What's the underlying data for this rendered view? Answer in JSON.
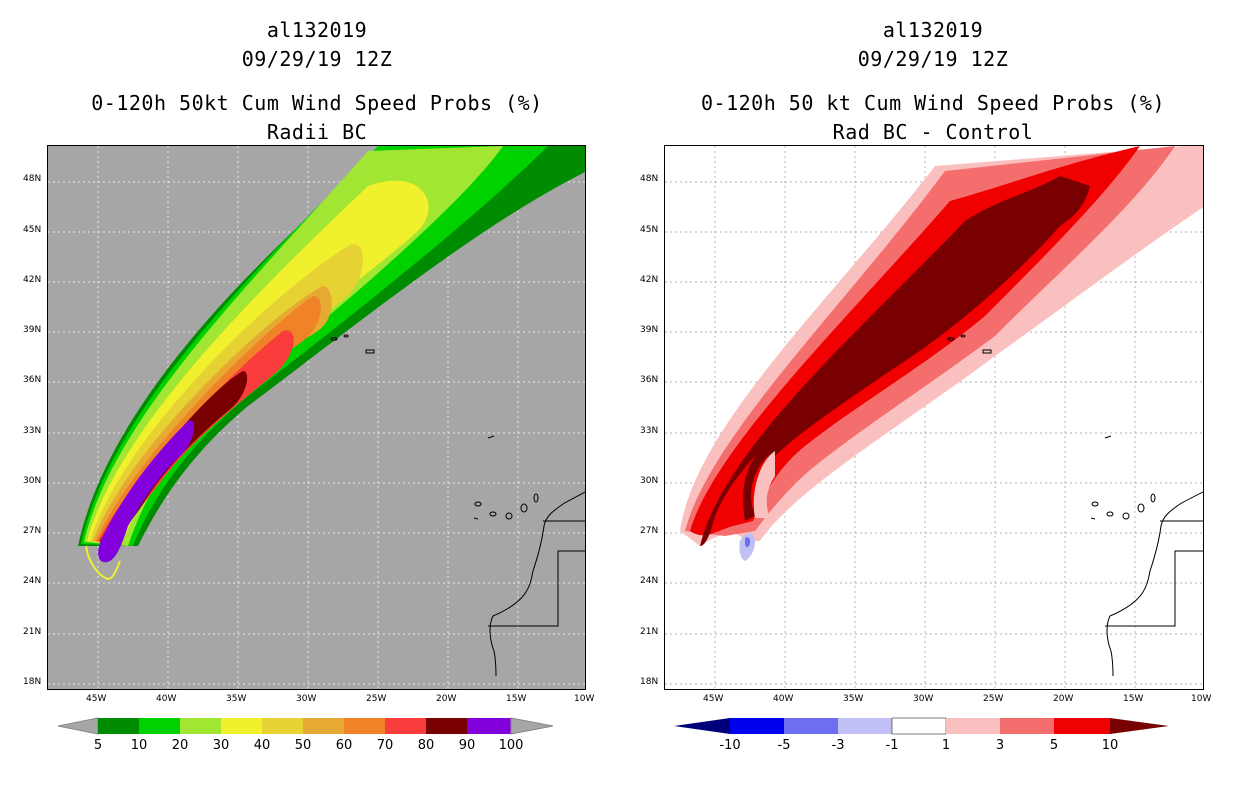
{
  "left_panel": {
    "title_line1": "al132019",
    "title_line2": "09/29/19 12Z",
    "title_line3": "0-120h 50kt Cum Wind Speed Probs (%)",
    "title_line4": "Radii BC",
    "colorbar_labels": [
      "5",
      "10",
      "20",
      "30",
      "40",
      "50",
      "60",
      "70",
      "80",
      "90",
      "100"
    ],
    "colorbar_colors": [
      "#008c00",
      "#00d200",
      "#a0e632",
      "#f0f02c",
      "#e6d232",
      "#e6aa32",
      "#f08228",
      "#fa3c3c",
      "#780000",
      "#8200dc"
    ],
    "background_color": "#a6a6a6"
  },
  "right_panel": {
    "title_line1": "al132019",
    "title_line2": "09/29/19 12Z",
    "title_line3": "0-120h 50 kt Cum Wind Speed Probs (%)",
    "title_line4": "Rad BC - Control",
    "colorbar_labels": [
      "-10",
      "-5",
      "-3",
      "-1",
      "1",
      "3",
      "5",
      "10"
    ],
    "colorbar_colors": [
      "#00007a",
      "#0000f0",
      "#6e6ef0",
      "#c0c0f5",
      "#ffffff",
      "#fac0c0",
      "#f56e6e",
      "#f00000",
      "#780000"
    ],
    "background_color": "#ffffff"
  },
  "axes": {
    "lat_labels": [
      "48N",
      "45N",
      "42N",
      "39N",
      "36N",
      "33N",
      "30N",
      "27N",
      "24N",
      "21N",
      "18N"
    ],
    "lon_labels": [
      "45W",
      "40W",
      "35W",
      "30W",
      "25W",
      "20W",
      "15W",
      "10W"
    ]
  }
}
